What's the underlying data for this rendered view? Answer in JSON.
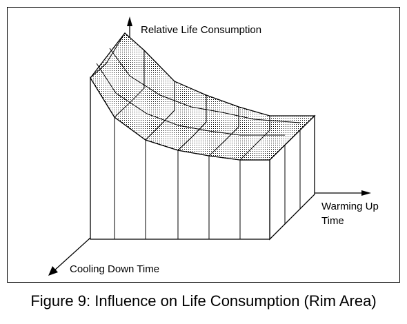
{
  "figure": {
    "caption": "Figure 9:  Influence on Life Consumption (Rim Area)"
  },
  "axes": {
    "vertical_label": "Relative Life Consumption",
    "right_label_line1": "Warming Up",
    "right_label_line2": "Time",
    "front_label": "Cooling Down Time"
  },
  "surface": {
    "fill_style": "dotted",
    "grid_columns": 6,
    "grid_rows": 3
  }
}
